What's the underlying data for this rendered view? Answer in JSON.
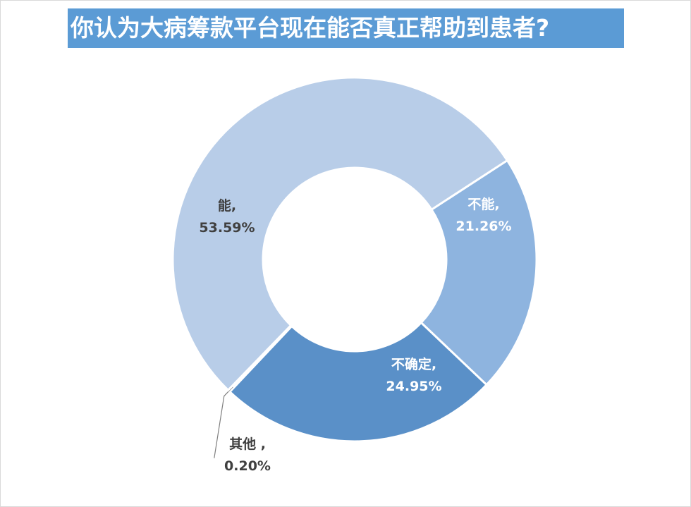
{
  "chart_data": {
    "type": "pie",
    "title": "你认为大病筹款平台现在能否真正帮助到患者?",
    "categories": [
      "不能",
      "不确定",
      "其他",
      "能"
    ],
    "values": [
      21.26,
      24.95,
      0.2,
      53.59
    ],
    "value_labels": [
      "21.26%",
      "24.95%",
      "0.20%",
      "53.59%"
    ],
    "label_names": [
      "不能,",
      "不确定,",
      "其他 ,",
      "能,"
    ],
    "colors": [
      "#8eb4df",
      "#5a90c8",
      "#b8cde8",
      "#b8cde8"
    ],
    "label_colors": [
      "#ffffff",
      "#ffffff",
      "#404040",
      "#404040"
    ],
    "donut": true,
    "legend": "none"
  }
}
